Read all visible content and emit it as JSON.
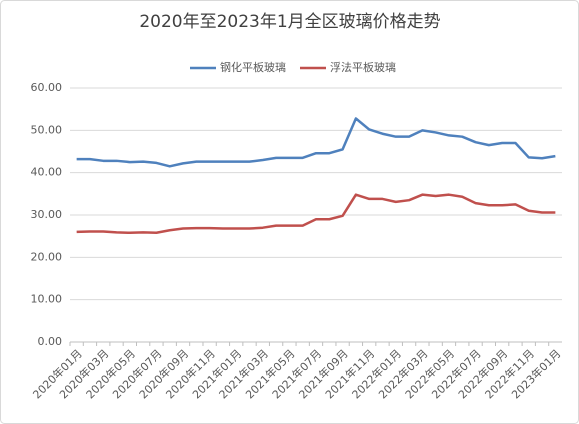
{
  "chart_data": {
    "type": "line",
    "title": "2020年至2023年1月全区玻璃价格走势",
    "categories": [
      "2020年01月",
      null,
      "2020年03月",
      null,
      "2020年05月",
      null,
      "2020年07月",
      null,
      "2020年09月",
      null,
      "2020年11月",
      null,
      "2021年01月",
      null,
      "2021年03月",
      null,
      "2021年05月",
      null,
      "2021年07月",
      null,
      "2021年09月",
      null,
      "2021年11月",
      null,
      "2022年01月",
      null,
      "2022年03月",
      null,
      "2022年05月",
      null,
      "2022年07月",
      null,
      "2022年09月",
      null,
      "2022年11月",
      null,
      "2023年01月"
    ],
    "series": [
      {
        "name": "钢化平板玻璃",
        "color": "#4f81bd",
        "values": [
          43.2,
          43.2,
          42.8,
          42.8,
          42.5,
          42.6,
          42.3,
          41.5,
          42.2,
          42.6,
          42.6,
          42.6,
          42.6,
          42.6,
          43.0,
          43.5,
          43.5,
          43.5,
          44.6,
          44.6,
          45.5,
          52.8,
          50.2,
          49.2,
          48.5,
          48.5,
          50.0,
          49.5,
          48.8,
          48.5,
          47.2,
          46.5,
          47.0,
          47.0,
          43.6,
          43.4,
          43.9
        ]
      },
      {
        "name": "浮法平板玻璃",
        "color": "#c0504d",
        "values": [
          26.0,
          26.1,
          26.1,
          25.9,
          25.8,
          25.9,
          25.8,
          26.4,
          26.8,
          26.9,
          26.9,
          26.8,
          26.8,
          26.8,
          27.0,
          27.5,
          27.5,
          27.5,
          29.0,
          29.0,
          29.8,
          34.8,
          33.8,
          33.8,
          33.1,
          33.5,
          34.8,
          34.5,
          34.8,
          34.3,
          32.8,
          32.3,
          32.3,
          32.5,
          31.0,
          30.6,
          30.6
        ]
      }
    ],
    "ylim": [
      0,
      60
    ],
    "yticks": [
      {
        "value": 0,
        "label": "0.00"
      },
      {
        "value": 10,
        "label": "10.00"
      },
      {
        "value": 20,
        "label": "20.00"
      },
      {
        "value": 30,
        "label": "30.00"
      },
      {
        "value": 40,
        "label": "40.00"
      },
      {
        "value": 50,
        "label": "50.00"
      },
      {
        "value": 60,
        "label": "60.00"
      }
    ],
    "grid": true,
    "legend": "top"
  }
}
